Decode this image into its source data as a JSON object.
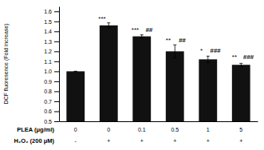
{
  "chart_data": {
    "type": "bar",
    "categories": [
      "0",
      "0",
      "0.1",
      "0.5",
      "1",
      "5"
    ],
    "xlabel": "PLEA (μg/ml)",
    "categories2": [
      "-",
      "+",
      "+",
      "+",
      "+",
      "+"
    ],
    "xlabel2": "H₂O₂ (200 μM)",
    "values": [
      1.0,
      1.46,
      1.35,
      1.2,
      1.12,
      1.065
    ],
    "errors": [
      0.0,
      0.025,
      0.015,
      0.065,
      0.032,
      0.015
    ],
    "color": "#111111",
    "ylabel": "DCF fluoresence (Fold increase)",
    "ylim": [
      0.5,
      1.65
    ],
    "yticks": [
      0.5,
      0.6,
      0.7,
      0.8,
      0.9,
      {
        "value": 1.0,
        "label": "1.0"
      },
      1.1,
      1.2,
      1.3,
      1.4,
      1.5,
      1.6
    ],
    "star_annotations": [
      {
        "bar": 1,
        "text": "***",
        "y": 1.5
      },
      {
        "bar": 2,
        "text": "***",
        "y": 1.385
      },
      {
        "bar": 3,
        "text": "**",
        "y": 1.285
      },
      {
        "bar": 4,
        "text": "*",
        "y": 1.175
      },
      {
        "bar": 5,
        "text": "**",
        "y": 1.115
      }
    ],
    "hash_annotations": [
      {
        "bar": 2,
        "text": "##",
        "y": 1.385
      },
      {
        "bar": 3,
        "text": "##",
        "y": 1.285
      },
      {
        "bar": 4,
        "text": "###",
        "y": 1.175
      },
      {
        "bar": 5,
        "text": "###",
        "y": 1.115
      }
    ],
    "grid": false
  }
}
